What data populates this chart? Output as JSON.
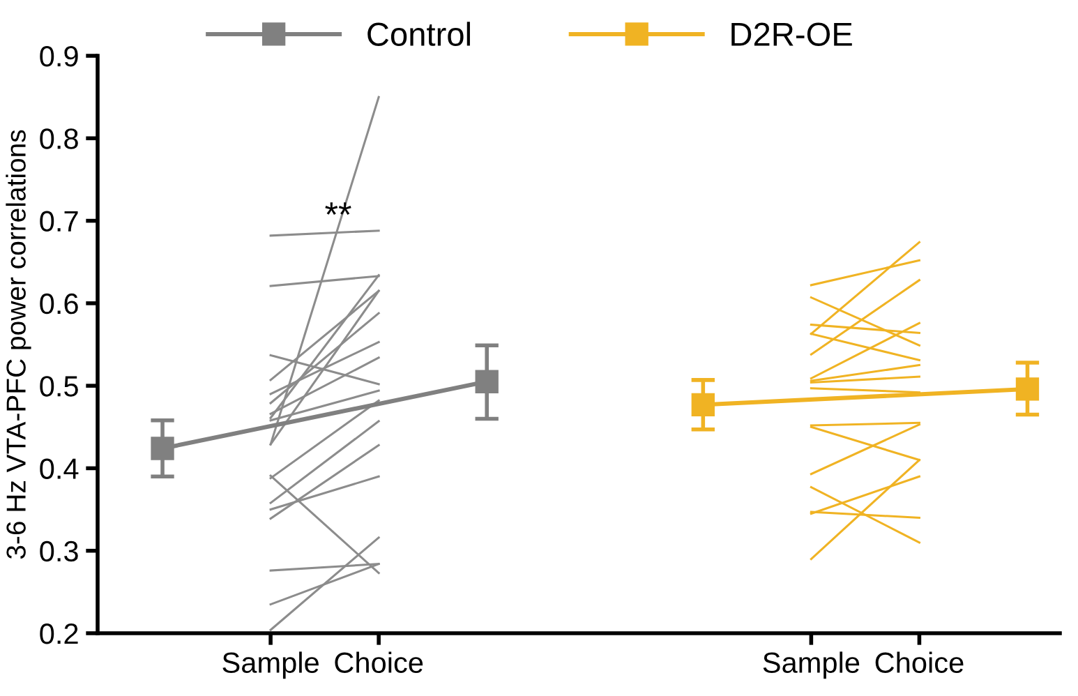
{
  "chart_data": {
    "type": "line",
    "ylabel": "3-6 Hz VTA-PFC power correlations",
    "categories": [
      null,
      "Sample",
      "Choice",
      null,
      null,
      null,
      "Sample",
      "Choice",
      null
    ],
    "ylim": [
      0.2,
      0.9
    ],
    "yticks": [
      0.2,
      0.3,
      0.4,
      0.5,
      0.6,
      0.7,
      0.8,
      0.9
    ],
    "grid": false,
    "legend": "top",
    "line_style": "solid",
    "annotations": [
      "**"
    ],
    "series": [
      {
        "color": "#8c8c8c",
        "values": [
          null,
          0.682,
          0.688,
          null,
          null,
          null,
          null,
          null,
          null
        ],
        "marker": "none"
      },
      {
        "color": "#8c8c8c",
        "values": [
          null,
          0.621,
          0.633,
          null,
          null,
          null,
          null,
          null,
          null
        ],
        "marker": "none"
      },
      {
        "color": "#8c8c8c",
        "values": [
          null,
          0.429,
          0.85,
          null,
          null,
          null,
          null,
          null,
          null
        ],
        "marker": "none"
      },
      {
        "color": "#8c8c8c",
        "values": [
          null,
          0.537,
          0.502,
          null,
          null,
          null,
          null,
          null,
          null
        ],
        "marker": "none"
      },
      {
        "color": "#8c8c8c",
        "values": [
          null,
          0.507,
          0.615,
          null,
          null,
          null,
          null,
          null,
          null
        ],
        "marker": "none"
      },
      {
        "color": "#8c8c8c",
        "values": [
          null,
          0.49,
          0.553,
          null,
          null,
          null,
          null,
          null,
          null
        ],
        "marker": "none"
      },
      {
        "color": "#8c8c8c",
        "values": [
          null,
          0.479,
          0.588,
          null,
          null,
          null,
          null,
          null,
          null
        ],
        "marker": "none"
      },
      {
        "color": "#8c8c8c",
        "values": [
          null,
          0.461,
          0.634,
          null,
          null,
          null,
          null,
          null,
          null
        ],
        "marker": "none"
      },
      {
        "color": "#8c8c8c",
        "values": [
          null,
          0.466,
          0.534,
          null,
          null,
          null,
          null,
          null,
          null
        ],
        "marker": "none"
      },
      {
        "color": "#8c8c8c",
        "values": [
          null,
          0.458,
          0.494,
          null,
          null,
          null,
          null,
          null,
          null
        ],
        "marker": "none"
      },
      {
        "color": "#8c8c8c",
        "values": [
          null,
          0.429,
          0.615,
          null,
          null,
          null,
          null,
          null,
          null
        ],
        "marker": "none"
      },
      {
        "color": "#8c8c8c",
        "values": [
          null,
          0.391,
          0.273,
          null,
          null,
          null,
          null,
          null,
          null
        ],
        "marker": "none"
      },
      {
        "color": "#8c8c8c",
        "values": [
          null,
          0.388,
          0.482,
          null,
          null,
          null,
          null,
          null,
          null
        ],
        "marker": "none"
      },
      {
        "color": "#8c8c8c",
        "values": [
          null,
          0.358,
          0.457,
          null,
          null,
          null,
          null,
          null,
          null
        ],
        "marker": "none"
      },
      {
        "color": "#8c8c8c",
        "values": [
          null,
          0.35,
          0.39,
          null,
          null,
          null,
          null,
          null,
          null
        ],
        "marker": "none"
      },
      {
        "color": "#8c8c8c",
        "values": [
          null,
          0.339,
          0.428,
          null,
          null,
          null,
          null,
          null,
          null
        ],
        "marker": "none"
      },
      {
        "color": "#8c8c8c",
        "values": [
          null,
          0.276,
          0.284,
          null,
          null,
          null,
          null,
          null,
          null
        ],
        "marker": "none"
      },
      {
        "color": "#8c8c8c",
        "values": [
          null,
          0.235,
          0.284,
          null,
          null,
          null,
          null,
          null,
          null
        ],
        "marker": "none"
      },
      {
        "color": "#8c8c8c",
        "values": [
          null,
          0.204,
          0.316,
          null,
          null,
          null,
          null,
          null,
          null
        ],
        "marker": "none"
      },
      {
        "color": "#f0b323",
        "values": [
          null,
          null,
          null,
          null,
          null,
          null,
          0.622,
          0.652,
          null
        ],
        "marker": "none"
      },
      {
        "color": "#f0b323",
        "values": [
          null,
          null,
          null,
          null,
          null,
          null,
          0.607,
          0.549,
          null
        ],
        "marker": "none"
      },
      {
        "color": "#f0b323",
        "values": [
          null,
          null,
          null,
          null,
          null,
          null,
          0.563,
          0.674,
          null
        ],
        "marker": "none"
      },
      {
        "color": "#f0b323",
        "values": [
          null,
          null,
          null,
          null,
          null,
          null,
          0.538,
          0.628,
          null
        ],
        "marker": "none"
      },
      {
        "color": "#f0b323",
        "values": [
          null,
          null,
          null,
          null,
          null,
          null,
          0.563,
          0.531,
          null
        ],
        "marker": "none"
      },
      {
        "color": "#f0b323",
        "values": [
          null,
          null,
          null,
          null,
          null,
          null,
          0.574,
          0.564,
          null
        ],
        "marker": "none"
      },
      {
        "color": "#f0b323",
        "values": [
          null,
          null,
          null,
          null,
          null,
          null,
          0.509,
          0.576,
          null
        ],
        "marker": "none"
      },
      {
        "color": "#f0b323",
        "values": [
          null,
          null,
          null,
          null,
          null,
          null,
          0.506,
          0.525,
          null
        ],
        "marker": "none"
      },
      {
        "color": "#f0b323",
        "values": [
          null,
          null,
          null,
          null,
          null,
          null,
          0.504,
          0.511,
          null
        ],
        "marker": "none"
      },
      {
        "color": "#f0b323",
        "values": [
          null,
          null,
          null,
          null,
          null,
          null,
          0.497,
          0.492,
          null
        ],
        "marker": "none"
      },
      {
        "color": "#f0b323",
        "values": [
          null,
          null,
          null,
          null,
          null,
          null,
          0.452,
          0.455,
          null
        ],
        "marker": "none"
      },
      {
        "color": "#f0b323",
        "values": [
          null,
          null,
          null,
          null,
          null,
          null,
          0.45,
          0.41,
          null
        ],
        "marker": "none"
      },
      {
        "color": "#f0b323",
        "values": [
          null,
          null,
          null,
          null,
          null,
          null,
          0.393,
          0.453,
          null
        ],
        "marker": "none"
      },
      {
        "color": "#f0b323",
        "values": [
          null,
          null,
          null,
          null,
          null,
          null,
          0.377,
          0.31,
          null
        ],
        "marker": "none"
      },
      {
        "color": "#f0b323",
        "values": [
          null,
          null,
          null,
          null,
          null,
          null,
          0.345,
          0.39,
          null
        ],
        "marker": "none"
      },
      {
        "color": "#f0b323",
        "values": [
          null,
          null,
          null,
          null,
          null,
          null,
          0.347,
          0.34,
          null
        ],
        "marker": "none"
      },
      {
        "color": "#f0b323",
        "values": [
          null,
          null,
          null,
          null,
          null,
          null,
          0.29,
          0.41,
          null
        ],
        "marker": "none"
      },
      {
        "name": "Control",
        "color": "#808080",
        "values": [
          0.424,
          null,
          null,
          0.505,
          null,
          null,
          null,
          null,
          null
        ],
        "errors": [
          [
            0.39,
            0.458
          ],
          null,
          null,
          [
            0.46,
            0.549
          ],
          null,
          null,
          null,
          null,
          null
        ],
        "marker": "square"
      },
      {
        "name": "D2R-OE",
        "color": "#f0b323",
        "values": [
          null,
          null,
          null,
          null,
          null,
          0.477,
          null,
          null,
          0.496
        ],
        "errors": [
          null,
          null,
          null,
          null,
          null,
          [
            0.447,
            0.507
          ],
          null,
          null,
          [
            0.465,
            0.528
          ]
        ],
        "marker": "square"
      }
    ]
  }
}
